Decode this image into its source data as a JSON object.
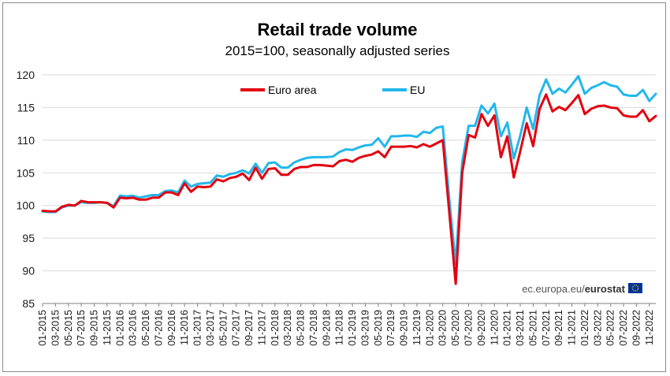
{
  "chart_data": {
    "type": "line",
    "title": "Retail trade volume",
    "subtitle": "2015=100, seasonally adjusted series",
    "xlabel": "",
    "ylabel": "",
    "ylim": [
      85,
      120
    ],
    "yticks": [
      85,
      90,
      95,
      100,
      105,
      110,
      115,
      120
    ],
    "grid": "horizontal",
    "legend_position": "top-center",
    "x_tick_labels": [
      "01-2015",
      "03-2015",
      "05-2015",
      "07-2015",
      "09-2015",
      "11-2015",
      "01-2016",
      "03-2016",
      "05-2016",
      "07-2016",
      "09-2016",
      "11-2016",
      "01-2017",
      "03-2017",
      "05-2017",
      "07-2017",
      "09-2017",
      "11-2017",
      "01-2018",
      "03-2018",
      "05-2018",
      "07-2018",
      "09-2018",
      "11-2018",
      "01-2019",
      "03-2019",
      "05-2019",
      "07-2019",
      "09-2019",
      "11-2019",
      "01-2020",
      "03-2020",
      "05-2020",
      "07-2020",
      "09-2020",
      "11-2020",
      "01-2021",
      "03-2021",
      "05-2021",
      "07-2021",
      "09-2021",
      "11-2021",
      "01-2022",
      "03-2022",
      "05-2022",
      "07-2022",
      "09-2022",
      "11-2022"
    ],
    "series": [
      {
        "name": "Euro area",
        "color": "#e3000f",
        "values": [
          99.2,
          99.1,
          99.1,
          99.8,
          100.1,
          100.0,
          100.7,
          100.5,
          100.5,
          100.5,
          100.4,
          99.7,
          101.2,
          101.1,
          101.2,
          100.9,
          100.9,
          101.2,
          101.2,
          102.0,
          102.0,
          101.6,
          103.4,
          102.1,
          102.9,
          102.8,
          102.9,
          104.0,
          103.7,
          104.2,
          104.4,
          104.9,
          103.9,
          105.8,
          104.1,
          105.6,
          105.7,
          104.7,
          104.7,
          105.6,
          105.9,
          105.9,
          106.2,
          106.2,
          106.1,
          106.0,
          106.8,
          107.0,
          106.7,
          107.3,
          107.6,
          107.8,
          108.3,
          107.4,
          109.0,
          109.0,
          109.0,
          109.1,
          108.9,
          109.4,
          109.0,
          109.5,
          110.0,
          99.0,
          88.0,
          105.0,
          110.8,
          110.4,
          114.0,
          112.2,
          113.8,
          107.4,
          110.6,
          104.3,
          108.3,
          112.6,
          109.1,
          114.8,
          117.0,
          114.4,
          115.1,
          114.6,
          115.7,
          116.9,
          114.0,
          114.8,
          115.2,
          115.3,
          115.0,
          114.9,
          113.8,
          113.6,
          113.6,
          114.6,
          112.9,
          113.7
        ]
      },
      {
        "name": "EU",
        "color": "#22b7ec",
        "values": [
          99.1,
          99.0,
          99.0,
          99.7,
          100.0,
          100.0,
          100.5,
          100.4,
          100.4,
          100.5,
          100.4,
          99.9,
          101.5,
          101.4,
          101.5,
          101.2,
          101.4,
          101.6,
          101.6,
          102.2,
          102.3,
          102.0,
          103.8,
          102.9,
          103.3,
          103.4,
          103.5,
          104.6,
          104.4,
          104.8,
          105.0,
          105.4,
          104.9,
          106.4,
          105.0,
          106.5,
          106.6,
          105.8,
          105.8,
          106.6,
          107.0,
          107.3,
          107.4,
          107.4,
          107.4,
          107.5,
          108.2,
          108.6,
          108.5,
          108.9,
          109.2,
          109.3,
          110.3,
          109.0,
          110.6,
          110.6,
          110.7,
          110.7,
          110.5,
          111.3,
          111.1,
          111.9,
          112.1,
          101.0,
          91.0,
          106.6,
          112.2,
          112.2,
          115.3,
          114.1,
          115.6,
          110.6,
          112.7,
          107.2,
          110.7,
          115.0,
          111.7,
          116.9,
          119.3,
          117.1,
          117.9,
          117.3,
          118.5,
          119.8,
          117.1,
          118.0,
          118.4,
          118.9,
          118.4,
          118.2,
          117.0,
          116.8,
          116.8,
          117.7,
          116.0,
          117.1
        ]
      }
    ]
  },
  "source": {
    "prefix": "ec.europa.eu/",
    "brand": "eurostat"
  }
}
